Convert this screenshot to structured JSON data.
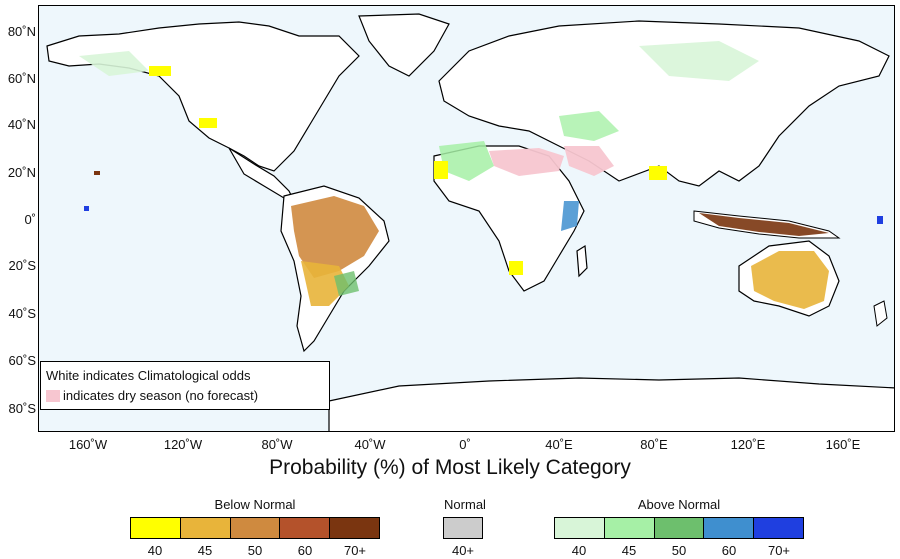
{
  "map": {
    "lat_labels": [
      "80˚N",
      "60˚N",
      "40˚N",
      "20˚N",
      "0˚",
      "20˚S",
      "40˚S",
      "60˚S",
      "80˚S"
    ],
    "lon_labels": [
      "160˚W",
      "120˚W",
      "80˚W",
      "40˚W",
      "0˚",
      "40˚E",
      "80˚E",
      "120˚E",
      "160˚E"
    ],
    "caption": "Probability (%) of Most Likely Category"
  },
  "legend": {
    "line1": "White indicates Climatological odds",
    "line2": "indicates dry season (no forecast)",
    "dry_season_color": "#f7c6d0"
  },
  "scale": {
    "below": {
      "title": "Below Normal",
      "labels": [
        "40",
        "45",
        "50",
        "60",
        "70+"
      ],
      "colors": [
        "#ffff00",
        "#e8b43a",
        "#cf8a3f",
        "#b4522b",
        "#7a3510"
      ]
    },
    "normal": {
      "title": "Normal",
      "labels": [
        "40+"
      ],
      "colors": [
        "#cccccc"
      ]
    },
    "above": {
      "title": "Above Normal",
      "labels": [
        "40",
        "45",
        "50",
        "60",
        "70+"
      ],
      "colors": [
        "#d8f5d8",
        "#a6f0a6",
        "#6dbf6d",
        "#3f8fcf",
        "#1f3fe0"
      ]
    }
  }
}
